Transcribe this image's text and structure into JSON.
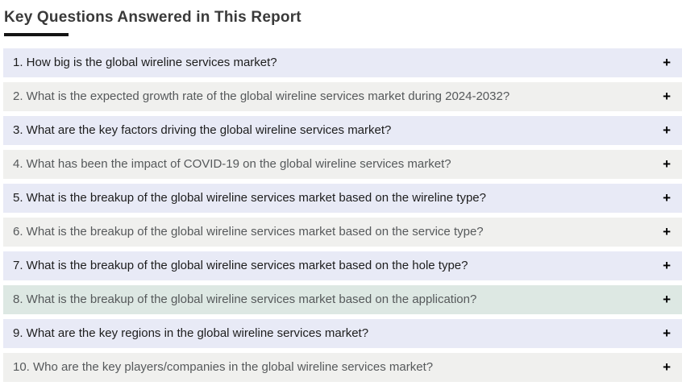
{
  "header": {
    "title": "Key Questions Answered in This Report"
  },
  "accordion": {
    "expand_icon": "+",
    "items": [
      {
        "label": "1. How big is the global wireline services market?",
        "tone": "dark",
        "highlighted": false
      },
      {
        "label": "2. What is the expected growth rate of the global wireline services market during 2024-2032?",
        "tone": "gray",
        "highlighted": false
      },
      {
        "label": "3. What are the key factors driving the global wireline services market?",
        "tone": "dark",
        "highlighted": false
      },
      {
        "label": "4. What has been the impact of COVID-19 on the global wireline services market?",
        "tone": "gray",
        "highlighted": false
      },
      {
        "label": "5. What is the breakup of the global wireline services market based on the wireline type?",
        "tone": "dark",
        "highlighted": false
      },
      {
        "label": "6. What is the breakup of the global wireline services market based on the service type?",
        "tone": "gray",
        "highlighted": false
      },
      {
        "label": "7. What is the breakup of the global wireline services market based on the hole type?",
        "tone": "dark",
        "highlighted": false
      },
      {
        "label": "8. What is the breakup of the global wireline services market based on the application?",
        "tone": "gray",
        "highlighted": true
      },
      {
        "label": "9. What are the key regions in the global wireline services market?",
        "tone": "dark",
        "highlighted": false
      },
      {
        "label": "10. Who are the key players/companies in the global wireline services market?",
        "tone": "gray",
        "highlighted": false
      }
    ]
  },
  "colors": {
    "row_odd_bg": "#e8eaf6",
    "row_even_bg": "#f0f0ee",
    "row_highlight_bg": "#dde8e3",
    "text_dark": "#1d1d1d",
    "text_gray": "#56595b"
  }
}
